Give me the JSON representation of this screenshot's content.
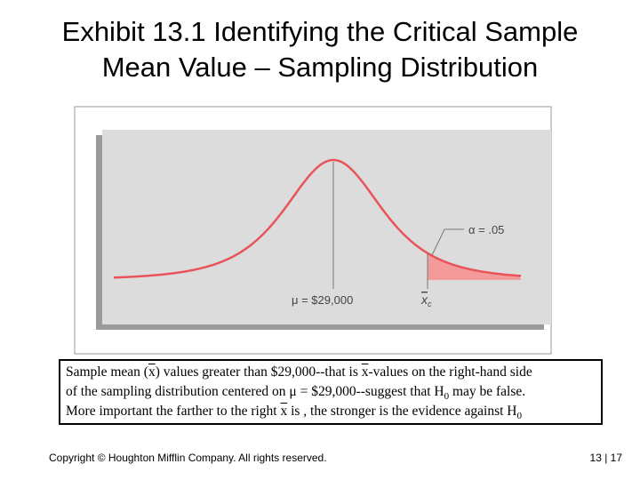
{
  "title": {
    "lines": [
      "Exhibit 13.1 Identifying the Critical Sample",
      "Mean Value – Sampling Distribution"
    ]
  },
  "figure": {
    "alpha_label": "α = .05",
    "mean_label": "μ = $29,000",
    "critical_label": {
      "base": "x",
      "sub": "c"
    }
  },
  "caption": {
    "lines": [
      [
        {
          "text": "Sample mean ("
        },
        {
          "text": "x",
          "style": "overline"
        },
        {
          "text": ") values greater than $29,000--that is "
        },
        {
          "text": "x",
          "style": "overline"
        },
        {
          "text": "-values on the right-hand side"
        }
      ],
      [
        {
          "text": "of the sampling distribution centered on μ = $29,000--suggest that H"
        },
        {
          "text": "0",
          "style": "sub"
        },
        {
          "text": " may be false."
        }
      ],
      [
        {
          "text": "More important the farther to the right "
        },
        {
          "text": "x",
          "style": "overline"
        },
        {
          "text": " is , the stronger is the evidence against H"
        },
        {
          "text": "0",
          "style": "sub"
        }
      ]
    ]
  },
  "footer": {
    "copyright": "Copyright © Houghton Mifflin Company.  All rights reserved.",
    "page": "13 | 17"
  }
}
